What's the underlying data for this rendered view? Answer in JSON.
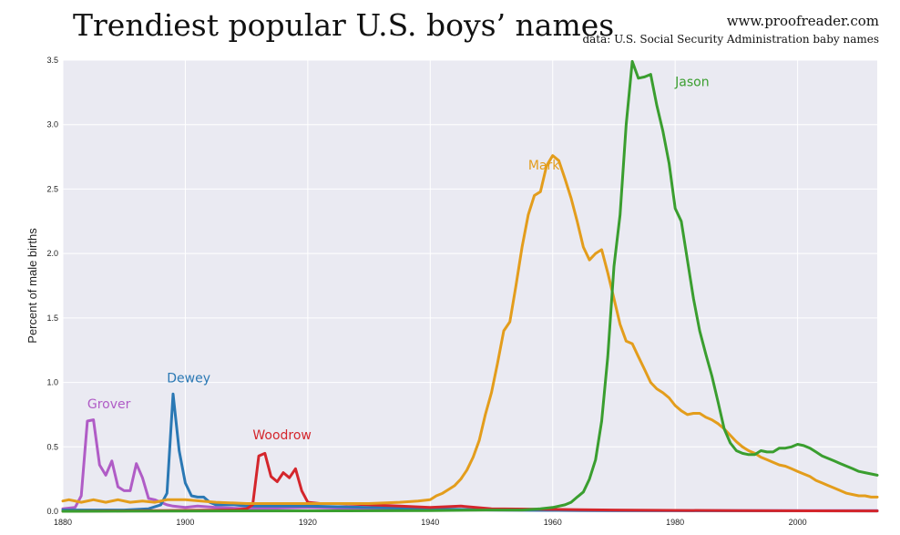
{
  "header": {
    "title": "Trendiest popular U.S. boys’ names",
    "site": "www.proofreader.com",
    "source": "data: U.S. Social Security Administration baby names"
  },
  "chart_data": {
    "type": "line",
    "ylabel": "Percent of male births",
    "xlim": [
      1880,
      2013
    ],
    "ylim": [
      0,
      3.5
    ],
    "xticks": [
      1880,
      1900,
      1920,
      1940,
      1960,
      1980,
      2000
    ],
    "yticks": [
      0.0,
      0.5,
      1.0,
      1.5,
      2.0,
      2.5,
      3.0,
      3.5
    ],
    "grid": true,
    "background": "#eaeaf2",
    "series": [
      {
        "name": "Grover",
        "color": "#b05cc6",
        "label_at": [
          1884,
          0.8
        ],
        "points": [
          [
            1880,
            0.02
          ],
          [
            1882,
            0.03
          ],
          [
            1883,
            0.12
          ],
          [
            1884,
            0.7
          ],
          [
            1885,
            0.71
          ],
          [
            1886,
            0.36
          ],
          [
            1887,
            0.28
          ],
          [
            1888,
            0.39
          ],
          [
            1889,
            0.19
          ],
          [
            1890,
            0.16
          ],
          [
            1891,
            0.16
          ],
          [
            1892,
            0.37
          ],
          [
            1893,
            0.26
          ],
          [
            1894,
            0.1
          ],
          [
            1895,
            0.09
          ],
          [
            1896,
            0.07
          ],
          [
            1897,
            0.05
          ],
          [
            1898,
            0.04
          ],
          [
            1900,
            0.03
          ],
          [
            1902,
            0.04
          ],
          [
            1905,
            0.03
          ],
          [
            1910,
            0.02
          ],
          [
            1920,
            0.03
          ],
          [
            1930,
            0.02
          ],
          [
            1940,
            0.01
          ],
          [
            1950,
            0.01
          ],
          [
            1970,
            0.005
          ],
          [
            2013,
            0.005
          ]
        ]
      },
      {
        "name": "Dewey",
        "color": "#2a78b4",
        "label_at": [
          1897,
          1.0
        ],
        "points": [
          [
            1880,
            0.01
          ],
          [
            1890,
            0.01
          ],
          [
            1894,
            0.02
          ],
          [
            1896,
            0.05
          ],
          [
            1897,
            0.14
          ],
          [
            1898,
            0.91
          ],
          [
            1899,
            0.47
          ],
          [
            1900,
            0.22
          ],
          [
            1901,
            0.12
          ],
          [
            1902,
            0.11
          ],
          [
            1903,
            0.11
          ],
          [
            1904,
            0.07
          ],
          [
            1905,
            0.05
          ],
          [
            1908,
            0.05
          ],
          [
            1910,
            0.04
          ],
          [
            1915,
            0.04
          ],
          [
            1920,
            0.04
          ],
          [
            1930,
            0.03
          ],
          [
            1940,
            0.02
          ],
          [
            1950,
            0.01
          ],
          [
            1970,
            0.005
          ],
          [
            2013,
            0.003
          ]
        ]
      },
      {
        "name": "Woodrow",
        "color": "#d4262c",
        "label_at": [
          1911,
          0.56
        ],
        "points": [
          [
            1880,
            0.0
          ],
          [
            1908,
            0.01
          ],
          [
            1910,
            0.02
          ],
          [
            1911,
            0.05
          ],
          [
            1912,
            0.43
          ],
          [
            1913,
            0.45
          ],
          [
            1914,
            0.27
          ],
          [
            1915,
            0.23
          ],
          [
            1916,
            0.3
          ],
          [
            1917,
            0.26
          ],
          [
            1918,
            0.33
          ],
          [
            1919,
            0.16
          ],
          [
            1920,
            0.07
          ],
          [
            1922,
            0.06
          ],
          [
            1925,
            0.06
          ],
          [
            1930,
            0.05
          ],
          [
            1935,
            0.04
          ],
          [
            1940,
            0.03
          ],
          [
            1945,
            0.04
          ],
          [
            1950,
            0.02
          ],
          [
            1960,
            0.015
          ],
          [
            1970,
            0.01
          ],
          [
            1990,
            0.005
          ],
          [
            2013,
            0.003
          ]
        ]
      },
      {
        "name": "Mark",
        "color": "#e39d1c",
        "label_at": [
          1956,
          2.65
        ],
        "points": [
          [
            1880,
            0.08
          ],
          [
            1881,
            0.09
          ],
          [
            1883,
            0.07
          ],
          [
            1885,
            0.09
          ],
          [
            1887,
            0.07
          ],
          [
            1889,
            0.09
          ],
          [
            1891,
            0.07
          ],
          [
            1893,
            0.08
          ],
          [
            1895,
            0.07
          ],
          [
            1897,
            0.09
          ],
          [
            1900,
            0.09
          ],
          [
            1905,
            0.07
          ],
          [
            1910,
            0.06
          ],
          [
            1915,
            0.06
          ],
          [
            1920,
            0.06
          ],
          [
            1925,
            0.06
          ],
          [
            1930,
            0.06
          ],
          [
            1935,
            0.07
          ],
          [
            1938,
            0.08
          ],
          [
            1940,
            0.09
          ],
          [
            1941,
            0.12
          ],
          [
            1942,
            0.14
          ],
          [
            1943,
            0.17
          ],
          [
            1944,
            0.2
          ],
          [
            1945,
            0.25
          ],
          [
            1946,
            0.32
          ],
          [
            1947,
            0.42
          ],
          [
            1948,
            0.55
          ],
          [
            1949,
            0.75
          ],
          [
            1950,
            0.92
          ],
          [
            1951,
            1.15
          ],
          [
            1952,
            1.4
          ],
          [
            1953,
            1.47
          ],
          [
            1954,
            1.75
          ],
          [
            1955,
            2.05
          ],
          [
            1956,
            2.3
          ],
          [
            1957,
            2.45
          ],
          [
            1958,
            2.48
          ],
          [
            1959,
            2.68
          ],
          [
            1960,
            2.76
          ],
          [
            1961,
            2.72
          ],
          [
            1962,
            2.58
          ],
          [
            1963,
            2.43
          ],
          [
            1964,
            2.25
          ],
          [
            1965,
            2.05
          ],
          [
            1966,
            1.95
          ],
          [
            1967,
            2.0
          ],
          [
            1968,
            2.03
          ],
          [
            1969,
            1.85
          ],
          [
            1970,
            1.65
          ],
          [
            1971,
            1.45
          ],
          [
            1972,
            1.32
          ],
          [
            1973,
            1.3
          ],
          [
            1974,
            1.2
          ],
          [
            1975,
            1.1
          ],
          [
            1976,
            1.0
          ],
          [
            1977,
            0.95
          ],
          [
            1978,
            0.92
          ],
          [
            1979,
            0.88
          ],
          [
            1980,
            0.82
          ],
          [
            1981,
            0.78
          ],
          [
            1982,
            0.75
          ],
          [
            1983,
            0.76
          ],
          [
            1984,
            0.76
          ],
          [
            1985,
            0.73
          ],
          [
            1986,
            0.71
          ],
          [
            1987,
            0.68
          ],
          [
            1988,
            0.64
          ],
          [
            1989,
            0.59
          ],
          [
            1990,
            0.54
          ],
          [
            1991,
            0.5
          ],
          [
            1992,
            0.47
          ],
          [
            1993,
            0.45
          ],
          [
            1994,
            0.42
          ],
          [
            1995,
            0.4
          ],
          [
            1996,
            0.38
          ],
          [
            1997,
            0.36
          ],
          [
            1998,
            0.35
          ],
          [
            1999,
            0.33
          ],
          [
            2000,
            0.31
          ],
          [
            2001,
            0.29
          ],
          [
            2002,
            0.27
          ],
          [
            2003,
            0.24
          ],
          [
            2004,
            0.22
          ],
          [
            2005,
            0.2
          ],
          [
            2006,
            0.18
          ],
          [
            2007,
            0.16
          ],
          [
            2008,
            0.14
          ],
          [
            2009,
            0.13
          ],
          [
            2010,
            0.12
          ],
          [
            2011,
            0.12
          ],
          [
            2012,
            0.11
          ],
          [
            2013,
            0.11
          ]
        ]
      },
      {
        "name": "Jason",
        "color": "#3a9e2f",
        "label_at": [
          1980,
          3.3
        ],
        "points": [
          [
            1880,
            0.0
          ],
          [
            1940,
            0.005
          ],
          [
            1950,
            0.01
          ],
          [
            1955,
            0.01
          ],
          [
            1958,
            0.02
          ],
          [
            1960,
            0.03
          ],
          [
            1962,
            0.05
          ],
          [
            1963,
            0.07
          ],
          [
            1964,
            0.11
          ],
          [
            1965,
            0.15
          ],
          [
            1966,
            0.25
          ],
          [
            1967,
            0.4
          ],
          [
            1968,
            0.7
          ],
          [
            1969,
            1.2
          ],
          [
            1970,
            1.9
          ],
          [
            1971,
            2.3
          ],
          [
            1972,
            3.0
          ],
          [
            1973,
            3.49
          ],
          [
            1974,
            3.36
          ],
          [
            1975,
            3.37
          ],
          [
            1976,
            3.39
          ],
          [
            1977,
            3.15
          ],
          [
            1978,
            2.95
          ],
          [
            1979,
            2.7
          ],
          [
            1980,
            2.35
          ],
          [
            1981,
            2.25
          ],
          [
            1982,
            1.95
          ],
          [
            1983,
            1.65
          ],
          [
            1984,
            1.4
          ],
          [
            1985,
            1.22
          ],
          [
            1986,
            1.05
          ],
          [
            1987,
            0.85
          ],
          [
            1988,
            0.64
          ],
          [
            1989,
            0.53
          ],
          [
            1990,
            0.47
          ],
          [
            1991,
            0.45
          ],
          [
            1992,
            0.44
          ],
          [
            1993,
            0.44
          ],
          [
            1994,
            0.47
          ],
          [
            1995,
            0.46
          ],
          [
            1996,
            0.46
          ],
          [
            1997,
            0.49
          ],
          [
            1998,
            0.49
          ],
          [
            1999,
            0.5
          ],
          [
            2000,
            0.52
          ],
          [
            2001,
            0.51
          ],
          [
            2002,
            0.49
          ],
          [
            2003,
            0.46
          ],
          [
            2004,
            0.43
          ],
          [
            2005,
            0.41
          ],
          [
            2006,
            0.39
          ],
          [
            2007,
            0.37
          ],
          [
            2008,
            0.35
          ],
          [
            2009,
            0.33
          ],
          [
            2010,
            0.31
          ],
          [
            2011,
            0.3
          ],
          [
            2012,
            0.29
          ],
          [
            2013,
            0.28
          ]
        ]
      }
    ]
  }
}
